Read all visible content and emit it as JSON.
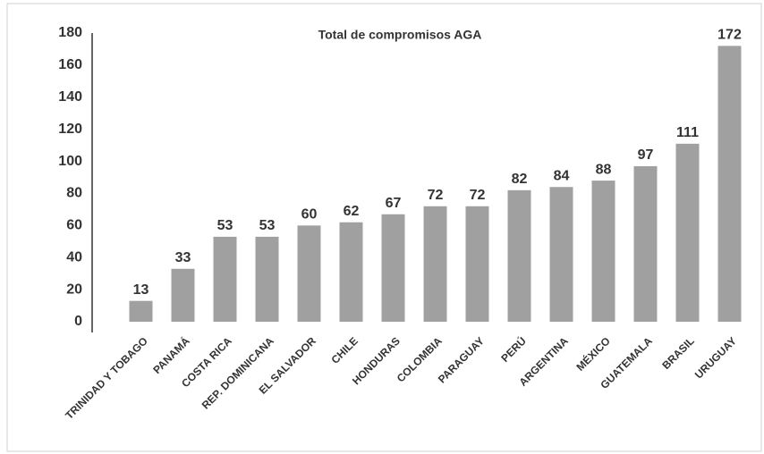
{
  "chart_data": {
    "type": "bar",
    "title": "Total de compromisos AGA",
    "categories": [
      "TRINIDAD Y TOBAGO",
      "PANAMÁ",
      "COSTA RICA",
      "REP. DOMINICANA",
      "EL SALVADOR",
      "CHILE",
      "HONDURAS",
      "COLOMBIA",
      "PARAGUAY",
      "PERÚ",
      "ARGENTINA",
      "MÉXICO",
      "GUATEMALA",
      "BRASIL",
      "URUGUAY"
    ],
    "values": [
      13,
      33,
      53,
      53,
      60,
      62,
      67,
      72,
      72,
      82,
      84,
      88,
      97,
      111,
      172
    ],
    "color": "#a0a0a0",
    "ylim": [
      0,
      180
    ],
    "yticks": [
      0,
      20,
      40,
      60,
      80,
      100,
      120,
      140,
      160,
      180
    ],
    "grid": false
  }
}
